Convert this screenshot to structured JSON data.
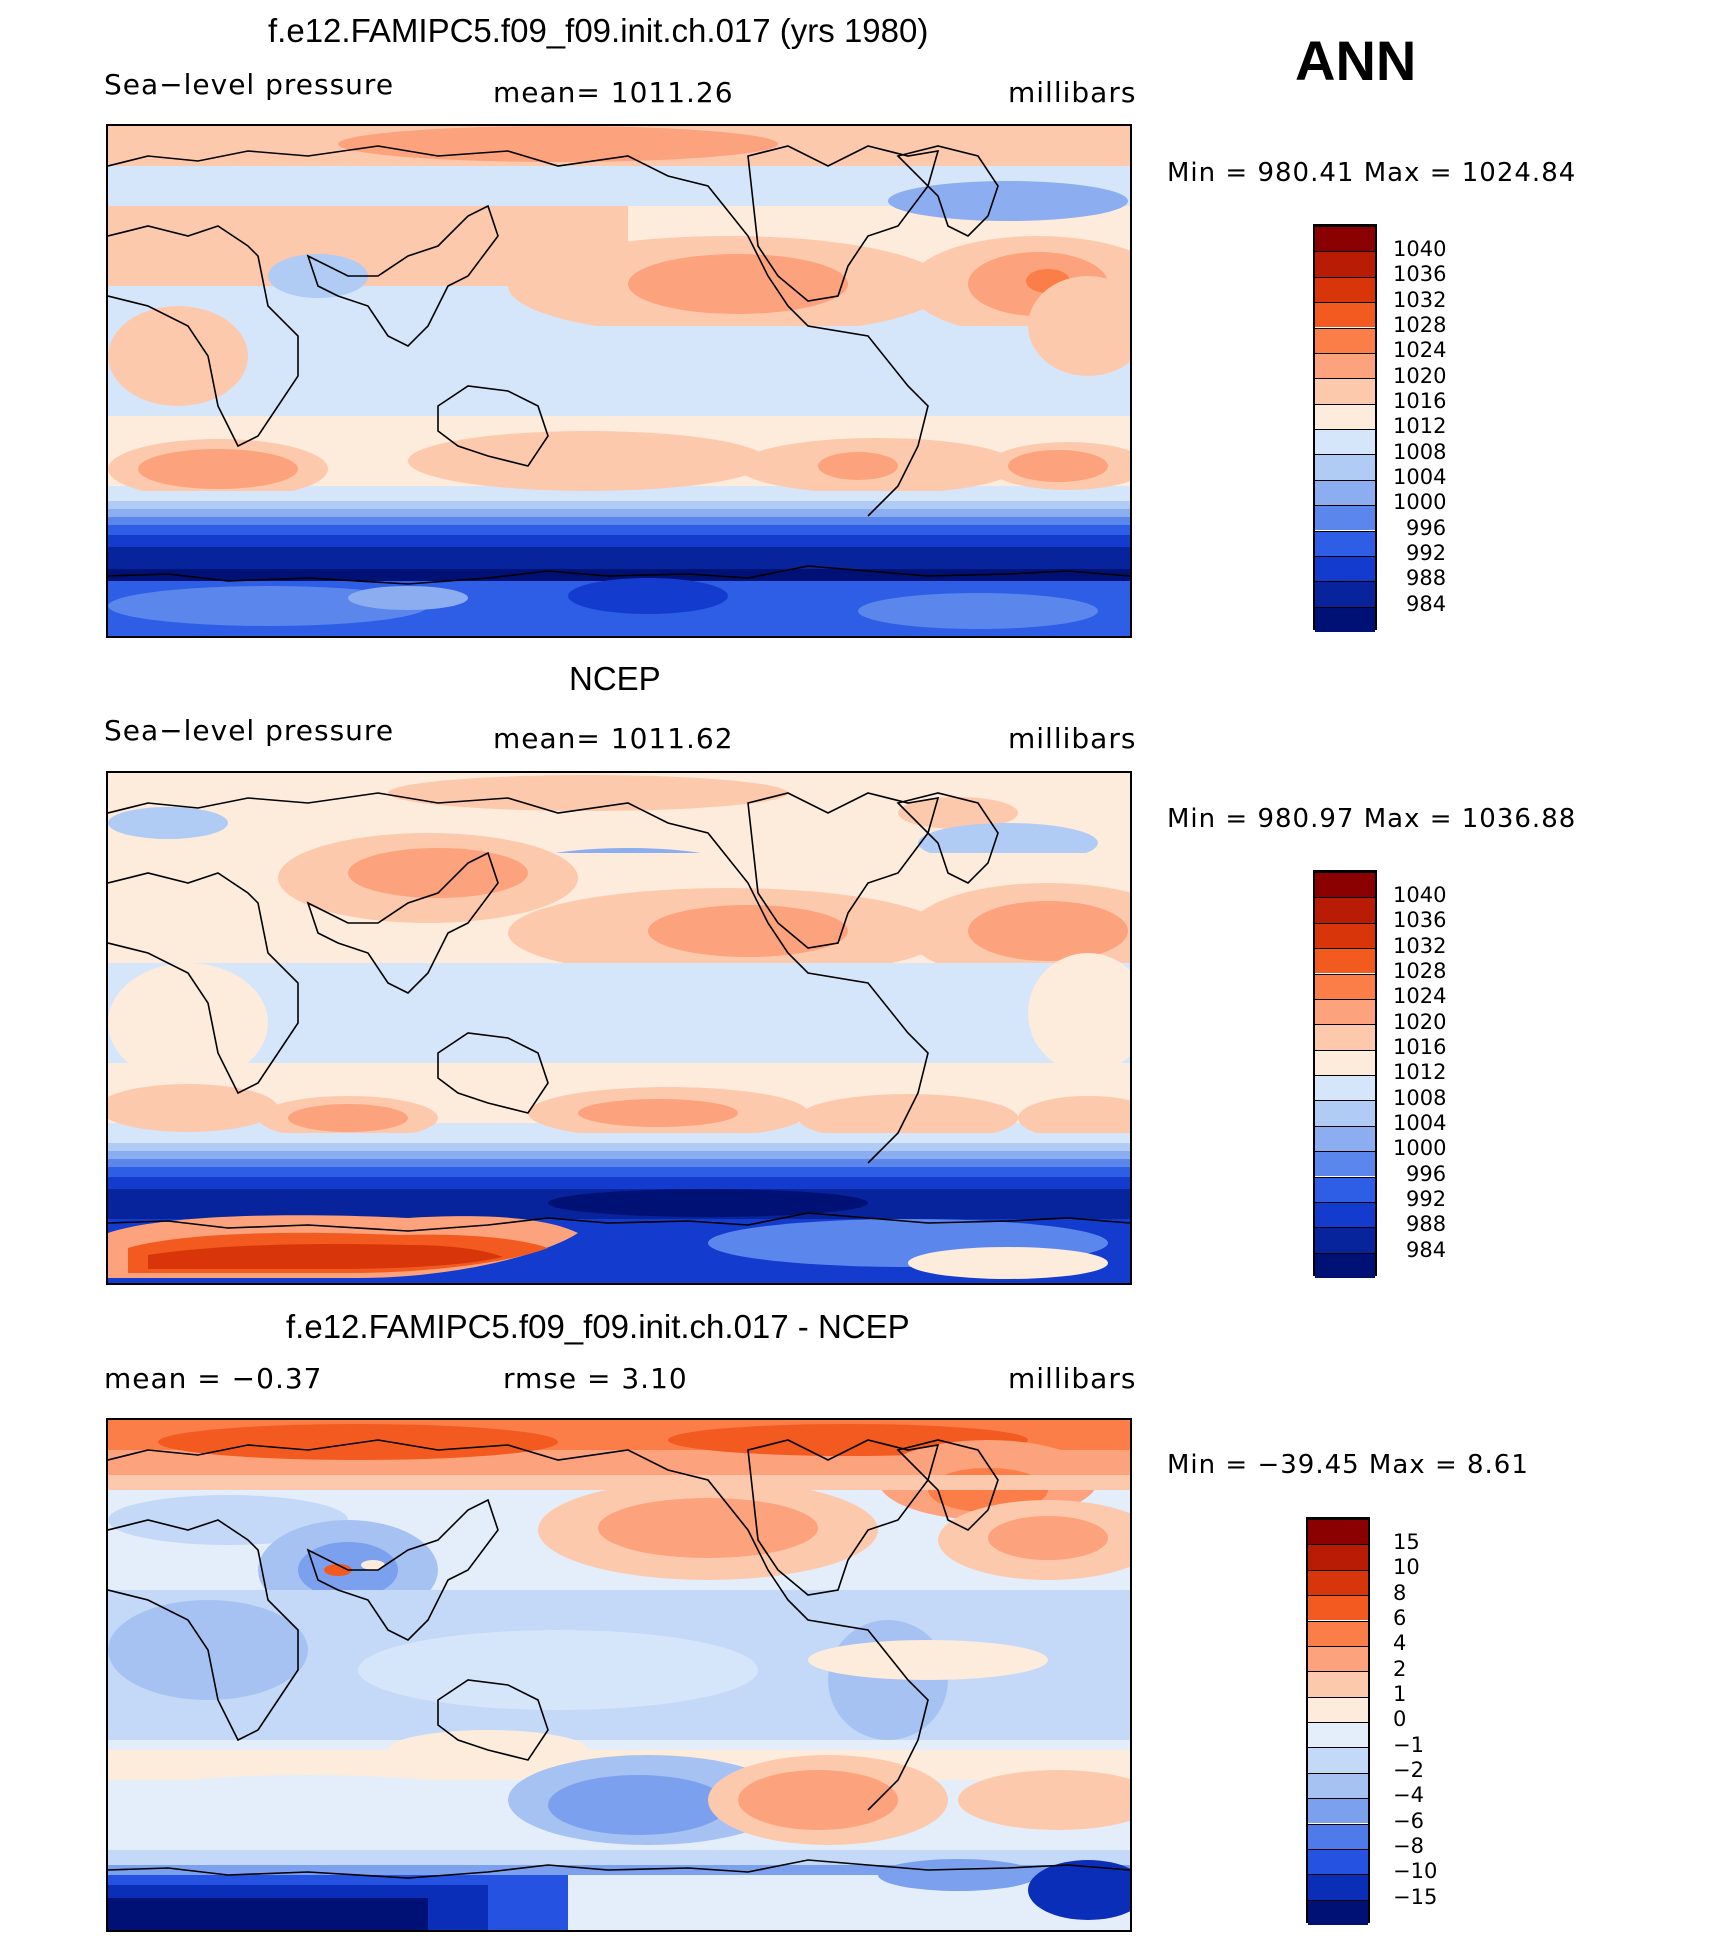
{
  "season": "ANN",
  "units": "millibars",
  "panels": [
    {
      "title": "f.e12.FAMIPC5.f09_f09.init.ch.017 (yrs 1980)",
      "left_label": "Sea−level pressure",
      "center_label": "mean=  1011.26",
      "right_label": "millibars",
      "minmax": "Min  =  980.41  Max  =  1024.84",
      "legend_ticks": [
        "1040",
        "1036",
        "1032",
        "1028",
        "1024",
        "1020",
        "1016",
        "1012",
        "1008",
        "1004",
        "1000",
        "996",
        "992",
        "988",
        "984"
      ],
      "legend_colors": [
        "#8b0000",
        "#b81c05",
        "#d8360a",
        "#f25a20",
        "#fb7d48",
        "#fca27c",
        "#fdc9ad",
        "#fdebdc",
        "#d5e6fb",
        "#b0cbf4",
        "#8cadef",
        "#5b86ec",
        "#2e5ee6",
        "#133ccf",
        "#07249c",
        "#001175"
      ]
    },
    {
      "title": "NCEP",
      "left_label": "Sea−level pressure",
      "center_label": "mean=  1011.62",
      "right_label": "millibars",
      "minmax": "Min  =  980.97  Max  =  1036.88",
      "legend_ticks": [
        "1040",
        "1036",
        "1032",
        "1028",
        "1024",
        "1020",
        "1016",
        "1012",
        "1008",
        "1004",
        "1000",
        "996",
        "992",
        "988",
        "984"
      ],
      "legend_colors": [
        "#8b0000",
        "#b81c05",
        "#d8360a",
        "#f25a20",
        "#fb7d48",
        "#fca27c",
        "#fdc9ad",
        "#fdebdc",
        "#d5e6fb",
        "#b0cbf4",
        "#8cadef",
        "#5b86ec",
        "#2e5ee6",
        "#133ccf",
        "#07249c",
        "#001175"
      ]
    },
    {
      "title": "f.e12.FAMIPC5.f09_f09.init.ch.017 - NCEP",
      "left_label": "mean  =     −0.37",
      "center_label": "rmse  =      3.10",
      "right_label": "millibars",
      "minmax": "Min  =  −39.45  Max  =      8.61",
      "legend_ticks": [
        "15",
        "10",
        "8",
        "6",
        "4",
        "2",
        "1",
        "0",
        "−1",
        "−2",
        "−4",
        "−6",
        "−8",
        "−10",
        "−15"
      ],
      "legend_colors": [
        "#8b0000",
        "#b81c05",
        "#d8360a",
        "#f25a20",
        "#fb7d48",
        "#fca27c",
        "#fdc9ad",
        "#fdebdc",
        "#e4eefb",
        "#c4d8f7",
        "#a6c2f2",
        "#7ba0ee",
        "#4f7ae9",
        "#2552e0",
        "#0b2eb8",
        "#001175"
      ]
    }
  ]
}
